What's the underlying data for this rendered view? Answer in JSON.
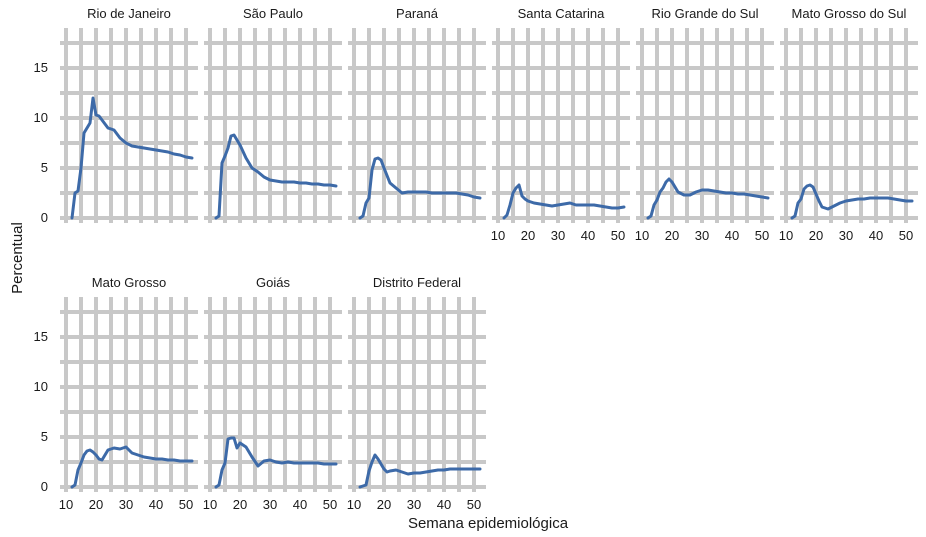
{
  "chart_data": {
    "type": "line",
    "xlabel": "Semana epidemiológica",
    "ylabel": "Percentual",
    "xlim": [
      8,
      54
    ],
    "ylim": [
      -0.5,
      19
    ],
    "x_ticks": [
      10,
      20,
      30,
      40,
      50
    ],
    "y_ticks": [
      0,
      5,
      10,
      15
    ],
    "grid": true,
    "line_color": "#3d6aa8",
    "grid_color": "#c8c8c8",
    "panels": [
      {
        "name": "Rio de Janeiro",
        "show_y_axis": true,
        "show_x_axis": false,
        "x": [
          12,
          13,
          14,
          15,
          16,
          17,
          18,
          19,
          20,
          21,
          22,
          24,
          26,
          28,
          30,
          32,
          34,
          36,
          38,
          40,
          42,
          44,
          46,
          48,
          50,
          52
        ],
        "y": [
          0,
          2.5,
          2.7,
          5.0,
          8.5,
          9.0,
          9.5,
          12.0,
          10.3,
          10.2,
          9.8,
          9.0,
          8.8,
          8.0,
          7.5,
          7.2,
          7.1,
          7.0,
          6.9,
          6.8,
          6.7,
          6.6,
          6.4,
          6.3,
          6.1,
          6.0
        ]
      },
      {
        "name": "São Paulo",
        "show_y_axis": false,
        "show_x_axis": false,
        "x": [
          12,
          13,
          14,
          15,
          16,
          17,
          18,
          19,
          20,
          22,
          24,
          26,
          28,
          30,
          32,
          34,
          36,
          38,
          40,
          42,
          44,
          46,
          48,
          50,
          52
        ],
        "y": [
          0,
          0.2,
          5.5,
          6.2,
          7.0,
          8.2,
          8.3,
          7.8,
          7.3,
          6.0,
          5.0,
          4.6,
          4.1,
          3.8,
          3.7,
          3.6,
          3.6,
          3.6,
          3.5,
          3.5,
          3.4,
          3.4,
          3.3,
          3.3,
          3.2
        ]
      },
      {
        "name": "Paraná",
        "show_y_axis": false,
        "show_x_axis": false,
        "x": [
          12,
          13,
          14,
          15,
          16,
          17,
          18,
          19,
          20,
          22,
          24,
          26,
          28,
          30,
          32,
          34,
          36,
          38,
          40,
          42,
          44,
          46,
          48,
          50,
          52
        ],
        "y": [
          0,
          0.2,
          1.5,
          2.0,
          4.8,
          5.9,
          6.0,
          5.8,
          5.0,
          3.5,
          3.0,
          2.5,
          2.6,
          2.6,
          2.6,
          2.6,
          2.5,
          2.5,
          2.5,
          2.5,
          2.5,
          2.4,
          2.3,
          2.1,
          2.0
        ]
      },
      {
        "name": "Santa Catarina",
        "show_y_axis": false,
        "show_x_axis": true,
        "x": [
          12,
          13,
          14,
          15,
          16,
          17,
          18,
          19,
          20,
          22,
          24,
          26,
          28,
          30,
          32,
          34,
          36,
          38,
          40,
          42,
          44,
          46,
          48,
          50,
          52
        ],
        "y": [
          0,
          0.3,
          1.3,
          2.5,
          3.0,
          3.3,
          2.2,
          1.9,
          1.7,
          1.5,
          1.4,
          1.3,
          1.2,
          1.3,
          1.4,
          1.5,
          1.3,
          1.3,
          1.3,
          1.3,
          1.2,
          1.1,
          1.0,
          1.0,
          1.1
        ]
      },
      {
        "name": "Rio Grande do Sul",
        "show_y_axis": false,
        "show_x_axis": true,
        "x": [
          12,
          13,
          14,
          15,
          16,
          17,
          18,
          19,
          20,
          22,
          24,
          26,
          28,
          30,
          32,
          34,
          36,
          38,
          40,
          42,
          44,
          46,
          48,
          50,
          52
        ],
        "y": [
          0,
          0.2,
          1.3,
          1.8,
          2.6,
          3.0,
          3.6,
          3.9,
          3.6,
          2.6,
          2.3,
          2.3,
          2.6,
          2.8,
          2.8,
          2.7,
          2.6,
          2.5,
          2.5,
          2.4,
          2.4,
          2.3,
          2.2,
          2.1,
          2.0
        ]
      },
      {
        "name": "Mato Grosso do Sul",
        "show_y_axis": false,
        "show_x_axis": true,
        "x": [
          12,
          13,
          14,
          15,
          16,
          17,
          18,
          19,
          20,
          21,
          22,
          24,
          26,
          28,
          30,
          32,
          34,
          36,
          38,
          40,
          42,
          44,
          46,
          48,
          50,
          52
        ],
        "y": [
          0,
          0.2,
          1.5,
          1.9,
          2.9,
          3.2,
          3.3,
          3.1,
          2.4,
          1.7,
          1.1,
          0.9,
          1.2,
          1.5,
          1.7,
          1.8,
          1.9,
          1.9,
          2.0,
          2.0,
          2.0,
          2.0,
          1.9,
          1.8,
          1.7,
          1.7
        ]
      },
      {
        "name": "Mato Grosso",
        "show_y_axis": true,
        "show_x_axis": true,
        "x": [
          12,
          13,
          14,
          15,
          16,
          17,
          18,
          19,
          20,
          21,
          22,
          24,
          26,
          28,
          30,
          32,
          34,
          36,
          38,
          40,
          42,
          44,
          46,
          48,
          50,
          52
        ],
        "y": [
          0,
          0.2,
          1.7,
          2.4,
          3.2,
          3.6,
          3.7,
          3.5,
          3.2,
          2.8,
          2.7,
          3.7,
          3.9,
          3.8,
          4.0,
          3.4,
          3.2,
          3.0,
          2.9,
          2.8,
          2.8,
          2.7,
          2.7,
          2.6,
          2.6,
          2.6
        ]
      },
      {
        "name": "Goiás",
        "show_y_axis": false,
        "show_x_axis": true,
        "x": [
          12,
          13,
          14,
          15,
          16,
          17,
          18,
          19,
          20,
          22,
          24,
          26,
          28,
          30,
          32,
          34,
          36,
          38,
          40,
          42,
          44,
          46,
          48,
          50,
          52
        ],
        "y": [
          0,
          0.2,
          1.7,
          2.4,
          4.8,
          4.9,
          4.9,
          3.9,
          4.4,
          4.0,
          3.0,
          2.1,
          2.6,
          2.7,
          2.5,
          2.4,
          2.5,
          2.4,
          2.4,
          2.4,
          2.4,
          2.4,
          2.3,
          2.3,
          2.3
        ]
      },
      {
        "name": "Distrito Federal",
        "show_y_axis": false,
        "show_x_axis": true,
        "x": [
          12,
          13,
          14,
          15,
          16,
          17,
          18,
          19,
          20,
          21,
          22,
          24,
          26,
          28,
          30,
          32,
          34,
          36,
          38,
          40,
          42,
          44,
          46,
          48,
          50,
          52
        ],
        "y": [
          0,
          0.1,
          0.2,
          1.6,
          2.5,
          3.2,
          2.8,
          2.3,
          1.8,
          1.5,
          1.6,
          1.7,
          1.5,
          1.3,
          1.4,
          1.4,
          1.5,
          1.6,
          1.7,
          1.7,
          1.8,
          1.8,
          1.8,
          1.8,
          1.8,
          1.8
        ]
      }
    ]
  }
}
